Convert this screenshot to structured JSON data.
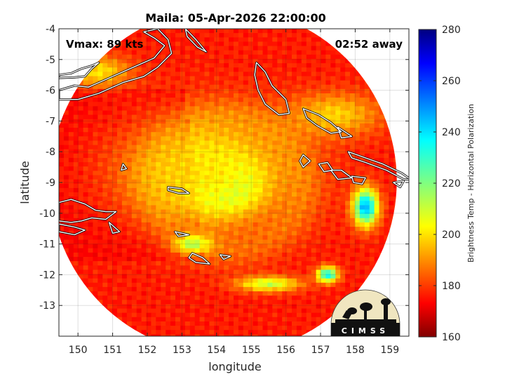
{
  "chart_data": {
    "type": "heatmap",
    "title": "Maila: 05-Apr-2026 22:00:00",
    "xlabel": "longitude",
    "ylabel": "latitude",
    "xlim": [
      149.45,
      159.55
    ],
    "ylim": [
      -14.0,
      -4.0
    ],
    "xticks": [
      150,
      151,
      152,
      153,
      154,
      155,
      156,
      157,
      158,
      159
    ],
    "yticks": [
      -4,
      -5,
      -6,
      -7,
      -8,
      -9,
      -10,
      -11,
      -12,
      -13
    ],
    "grid": true,
    "annotations": {
      "vmax": "Vmax: 89 kts",
      "time_away": "02:52 away"
    },
    "colorbar": {
      "label": "Brightness Temp - Horizontal Polarization",
      "min": 160,
      "max": 280,
      "ticks": [
        160,
        180,
        200,
        220,
        240,
        260,
        280
      ],
      "colormap": "jet"
    },
    "swath": {
      "center_lon": 154.2,
      "center_lat": -8.95,
      "radius_deg": 5.0
    },
    "storm_center": {
      "lon": 154.3,
      "lat": -9.05,
      "min_tb": 190
    },
    "features": [
      {
        "lon": 154.3,
        "lat": -9.05,
        "dx": 0.8,
        "dy": 0.7,
        "tb": 190
      },
      {
        "lon": 153.7,
        "lat": -8.9,
        "dx": 1.4,
        "dy": 1.1,
        "tb": 220
      },
      {
        "lon": 153.6,
        "lat": -8.6,
        "dx": 2.6,
        "dy": 1.8,
        "tb": 238
      },
      {
        "lon": 158.3,
        "lat": -9.8,
        "dx": 0.35,
        "dy": 0.6,
        "tb": 195
      },
      {
        "lon": 157.2,
        "lat": -12.0,
        "dx": 0.3,
        "dy": 0.25,
        "tb": 205
      },
      {
        "lon": 155.5,
        "lat": -12.3,
        "dx": 0.9,
        "dy": 0.25,
        "tb": 228
      },
      {
        "lon": 153.3,
        "lat": -11.0,
        "dx": 0.5,
        "dy": 0.3,
        "tb": 222
      },
      {
        "lon": 150.6,
        "lat": -5.4,
        "dx": 0.9,
        "dy": 0.5,
        "tb": 238
      },
      {
        "lon": 157.4,
        "lat": -6.8,
        "dx": 1.3,
        "dy": 0.7,
        "tb": 240
      }
    ]
  },
  "logo": {
    "text": "CIMSS"
  }
}
